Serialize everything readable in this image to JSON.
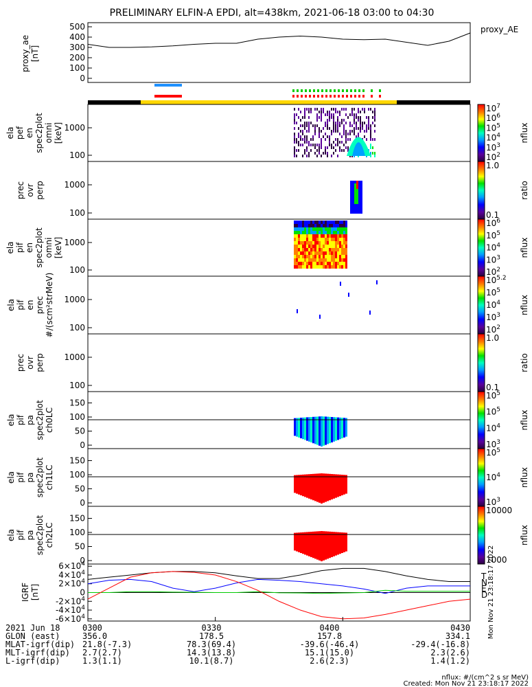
{
  "title": "PRELIMINARY ELFIN-A EPDI, alt=438km, 2021-06-18 03:00 to 04:30",
  "chart_data": [
    {
      "type": "line",
      "panel": "proxy_ae",
      "ylabel": [
        "proxy_ae",
        "[nT]"
      ],
      "legend": "proxy_AE",
      "yticks": [
        "0",
        "100",
        "200",
        "300",
        "400",
        "500"
      ],
      "ylim": [
        0,
        550
      ],
      "x_minutes": [
        0,
        5,
        10,
        15,
        20,
        25,
        30,
        35,
        40,
        45,
        50,
        55,
        60,
        65,
        70,
        75,
        80,
        85,
        90
      ],
      "values": [
        330,
        300,
        300,
        305,
        315,
        330,
        340,
        340,
        380,
        400,
        410,
        400,
        380,
        375,
        380,
        350,
        320,
        360,
        440
      ]
    },
    {
      "type": "heatmap",
      "panel": "ela_pef_en_spec2plot_omni",
      "ylabel": [
        "ela",
        "pef",
        "en",
        "spec2plot",
        "omni",
        "[keV]"
      ],
      "yticks": [
        "100",
        "1000"
      ],
      "colorbar": {
        "label": "nflux",
        "ticks": [
          "10^2",
          "10^3",
          "10^4",
          "10^5",
          "10^6",
          "10^7"
        ]
      }
    },
    {
      "type": "heatmap",
      "panel": "prec_ovr_perp_e",
      "ylabel": [
        "prec",
        "ovr",
        "perp"
      ],
      "yticks": [
        "100",
        "1000"
      ],
      "colorbar": {
        "label": "ratio",
        "ticks": [
          "0.1",
          "1.0"
        ]
      }
    },
    {
      "type": "heatmap",
      "panel": "ela_pif_en_spec2plot_omni",
      "ylabel": [
        "ela",
        "pif",
        "en",
        "spec2plot",
        "omni",
        "[keV]"
      ],
      "yticks": [
        "100",
        "1000"
      ],
      "colorbar": {
        "label": "nflux",
        "ticks": [
          "10^2",
          "10^3",
          "10^4",
          "10^5",
          "10^6"
        ]
      }
    },
    {
      "type": "heatmap",
      "panel": "ela_pif_en_prec",
      "ylabel": [
        "ela",
        "pif",
        "en",
        "prec",
        "#/(scm²strMeV)"
      ],
      "yticks": [
        "100",
        "1000"
      ],
      "colorbar": {
        "label": "nflux",
        "ticks": [
          "10^2",
          "10^3",
          "10^4",
          "10^5",
          "10^5.2"
        ]
      }
    },
    {
      "type": "heatmap",
      "panel": "prec_ovr_perp_i",
      "ylabel": [
        "prec",
        "ovr",
        "perp"
      ],
      "yticks": [
        "100",
        "1000"
      ],
      "colorbar": {
        "label": "ratio",
        "ticks": [
          "0.1",
          "1.0"
        ]
      }
    },
    {
      "type": "heatmap",
      "panel": "ela_pif_pa_spec2plot_ch0LC",
      "ylabel": [
        "ela",
        "pif",
        "pa",
        "spec2plot",
        "ch0LC"
      ],
      "yticks": [
        "0",
        "50",
        "100",
        "150"
      ],
      "colorbar": {
        "label": "nflux",
        "ticks": [
          "10^3",
          "10^4",
          "10^5",
          "10^5"
        ]
      }
    },
    {
      "type": "heatmap",
      "panel": "ela_pif_pa_spec2plot_ch1LC",
      "ylabel": [
        "ela",
        "pif",
        "pa",
        "spec2plot",
        "ch1LC"
      ],
      "yticks": [
        "0",
        "50",
        "100",
        "150"
      ],
      "colorbar": {
        "label": "nflux",
        "ticks": [
          "10^3",
          "10^4",
          "10^5"
        ]
      }
    },
    {
      "type": "heatmap",
      "panel": "ela_pif_pa_spec2plot_ch2LC",
      "ylabel": [
        "ela",
        "pif",
        "pa",
        "spec2plot",
        "ch2LC"
      ],
      "yticks": [
        "0",
        "50",
        "100",
        "150"
      ],
      "colorbar": {
        "label": "nflux",
        "ticks": [
          "1000",
          "10000"
        ]
      }
    },
    {
      "type": "line",
      "panel": "IGRF",
      "ylabel": [
        "IGRF",
        "[nT]"
      ],
      "yticks": [
        "-6x10^4",
        "-4x10^4",
        "-2x10^4",
        "0",
        "2x10^4",
        "4x10^4",
        "6x10^4"
      ],
      "ylim": [
        -65000,
        65000
      ],
      "legend": [
        "T",
        "N",
        "E",
        "D"
      ],
      "x_minutes": [
        0,
        5,
        10,
        15,
        20,
        25,
        30,
        35,
        40,
        45,
        50,
        55,
        60,
        65,
        70,
        75,
        80,
        85,
        90
      ],
      "series": [
        {
          "name": "T",
          "color": "#000000",
          "values": [
            30000,
            35000,
            40000,
            45000,
            48000,
            48000,
            45000,
            38000,
            32000,
            32000,
            40000,
            50000,
            55000,
            55000,
            48000,
            38000,
            30000,
            25000,
            25000
          ]
        },
        {
          "name": "N",
          "color": "#0000ff",
          "values": [
            20000,
            28000,
            30000,
            25000,
            10000,
            2000,
            10000,
            22000,
            30000,
            28000,
            25000,
            20000,
            15000,
            8000,
            -2000,
            10000,
            15000,
            15000,
            15000
          ]
        },
        {
          "name": "E",
          "color": "#00cc00",
          "values": [
            0,
            0,
            2000,
            2000,
            1000,
            500,
            0,
            0,
            2000,
            -500,
            -1000,
            -2000,
            -1000,
            0,
            5000,
            3000,
            3000,
            3000,
            3000
          ]
        },
        {
          "name": "D",
          "color": "#ff0000",
          "values": [
            -15000,
            10000,
            35000,
            45000,
            48000,
            46000,
            40000,
            25000,
            5000,
            -20000,
            -40000,
            -55000,
            -60000,
            -58000,
            -50000,
            -40000,
            -30000,
            -20000,
            -15000
          ]
        }
      ]
    }
  ],
  "colorbar_timestamp": "Mon Nov 21 23:18:17 2022",
  "footer": {
    "rows": [
      {
        "label": "2021 Jun 18",
        "vals": [
          "0300",
          "0330",
          "0400",
          "0430"
        ]
      },
      {
        "label": "GLON (east)",
        "vals": [
          "356.0",
          "178.5",
          "157.8",
          "334.1"
        ]
      },
      {
        "label": "MLAT-igrf(dip)",
        "vals": [
          "21.8(-7.3)",
          "78.3(69.4)",
          "-39.6(-46.4)",
          "-29.4(-16.8)"
        ]
      },
      {
        "label": "MLT-igrf(dip)",
        "vals": [
          "2.7(2.7)",
          "14.3(13.8)",
          "15.1(15.0)",
          "2.3(2.6)"
        ]
      },
      {
        "label": "L-igrf(dip)",
        "vals": [
          "1.3(1.1)",
          "10.1(8.7)",
          "2.6(2.3)",
          "1.4(1.2)"
        ]
      }
    ],
    "units_note": "nflux: #/(cm^2 s sr MeV)",
    "created": "Created: Mon Nov 21 23:18:17 2022"
  },
  "colors": {
    "spectrum_low": "#4b0082",
    "spectrum_high": "#ff0000",
    "yellow_bar": "#ffd700"
  }
}
